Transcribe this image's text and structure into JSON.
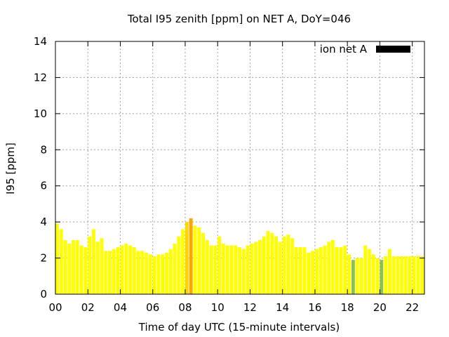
{
  "chart_data": {
    "type": "bar",
    "title": "Total I95 zenith [ppm] on NET A, DoY=046",
    "xlabel": "Time of day UTC (15-minute intervals)",
    "ylabel": "I95 [ppm]",
    "xlim": [
      0,
      22.75
    ],
    "ylim": [
      0,
      14
    ],
    "grid": true,
    "legend": {
      "label": "ion net A",
      "color": "#000000",
      "position": "top-right"
    },
    "x_ticks": [
      "00",
      "02",
      "04",
      "06",
      "08",
      "10",
      "12",
      "14",
      "16",
      "18",
      "20",
      "22"
    ],
    "y_ticks": [
      "0",
      "2",
      "4",
      "6",
      "8",
      "10",
      "12",
      "14"
    ],
    "color_scale": {
      "below_2": "#8bc34a",
      "normal": "#ffff00",
      "elevated": "#ffd700",
      "high": "#ffa500"
    },
    "bin_hours": 0.25,
    "values": [
      3.9,
      3.6,
      3.0,
      2.8,
      3.0,
      3.0,
      2.7,
      2.6,
      3.2,
      3.6,
      2.9,
      3.1,
      2.4,
      2.4,
      2.5,
      2.6,
      2.7,
      2.8,
      2.7,
      2.6,
      2.4,
      2.4,
      2.3,
      2.2,
      2.1,
      2.2,
      2.2,
      2.3,
      2.5,
      2.8,
      3.2,
      3.6,
      4.0,
      4.2,
      3.8,
      3.7,
      3.4,
      3.0,
      2.7,
      2.7,
      3.2,
      2.8,
      2.7,
      2.7,
      2.7,
      2.6,
      2.5,
      2.7,
      2.8,
      2.9,
      3.0,
      3.2,
      3.5,
      3.4,
      3.2,
      2.9,
      3.2,
      3.3,
      3.1,
      2.6,
      2.6,
      2.6,
      2.3,
      2.4,
      2.5,
      2.6,
      2.7,
      2.9,
      3.0,
      2.6,
      2.6,
      2.7,
      2.2,
      1.9,
      2.0,
      2.0,
      2.7,
      2.5,
      2.2,
      2.0,
      1.9,
      2.1,
      2.5,
      2.1,
      2.1,
      2.1,
      2.1,
      2.1,
      2.1,
      2.1,
      2.1,
      1.8
    ]
  }
}
